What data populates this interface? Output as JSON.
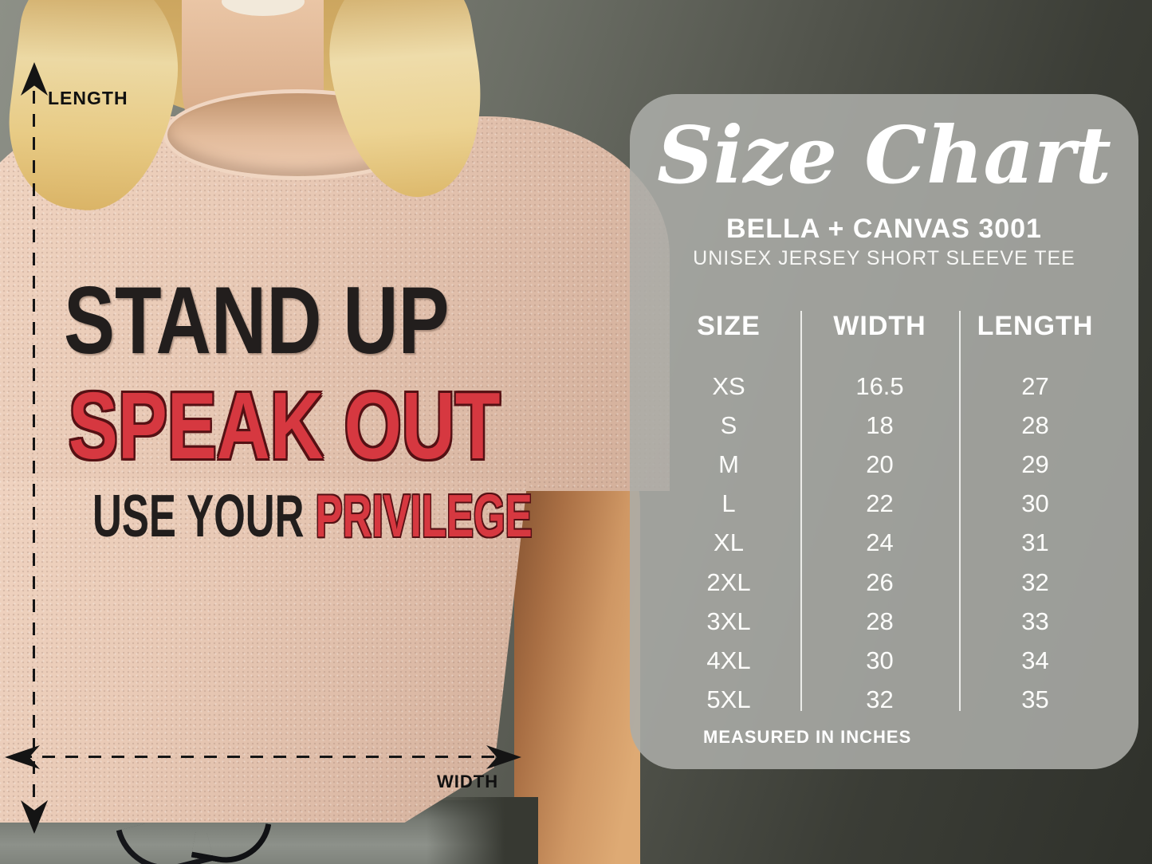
{
  "mockup": {
    "length_label": "LENGTH",
    "width_label": "WIDTH",
    "shirt_text": {
      "line1": "STAND UP",
      "line2": "SPEAK OUT",
      "line3_part1": "USE YOUR ",
      "line3_part2": "PRIVILEGE"
    }
  },
  "panel": {
    "title": "Size Chart",
    "brand": "BELLA + CANVAS 3001",
    "subtitle": "UNISEX JERSEY SHORT SLEEVE TEE",
    "footnote": "MEASURED IN INCHES"
  },
  "chart_data": {
    "type": "table",
    "title": "Size Chart",
    "columns": [
      "SIZE",
      "WIDTH",
      "LENGTH"
    ],
    "rows": [
      [
        "XS",
        "16.5",
        "27"
      ],
      [
        "S",
        "18",
        "28"
      ],
      [
        "M",
        "20",
        "29"
      ],
      [
        "L",
        "22",
        "30"
      ],
      [
        "XL",
        "24",
        "31"
      ],
      [
        "2XL",
        "26",
        "32"
      ],
      [
        "3XL",
        "28",
        "33"
      ],
      [
        "4XL",
        "30",
        "34"
      ],
      [
        "5XL",
        "32",
        "35"
      ]
    ],
    "units": "inches",
    "notes": "MEASURED IN INCHES"
  },
  "colors": {
    "text_black": "#221e1d",
    "text_red": "#d63840",
    "panel_bg": "#abaca7",
    "shirt": "#e8c9b5",
    "panel_text": "#ffffff"
  }
}
